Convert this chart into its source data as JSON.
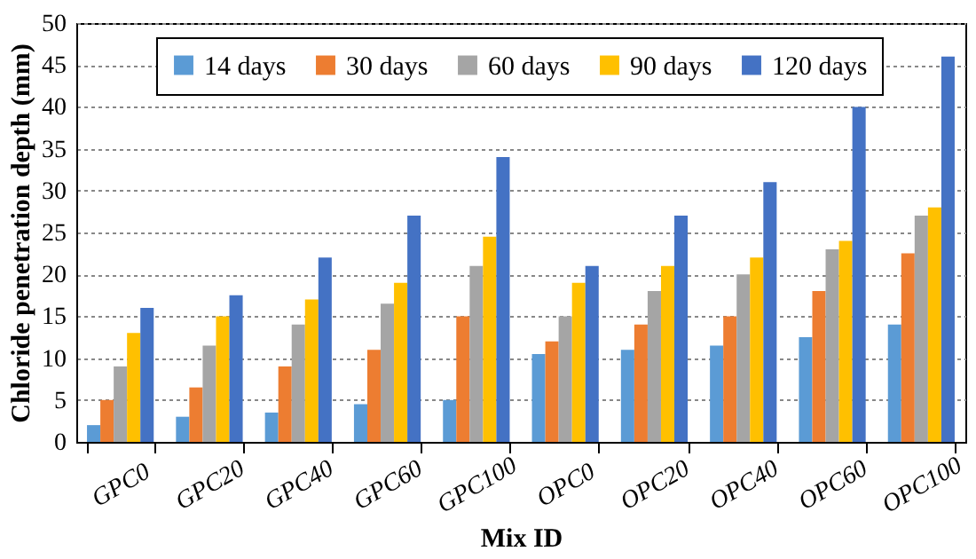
{
  "chart_data": {
    "type": "bar",
    "xlabel": "Mix ID",
    "ylabel": "Chloride penetration depth (mm)",
    "categories": [
      "GPC0",
      "GPC20",
      "GPC40",
      "GPC60",
      "GPC100",
      "OPC0",
      "OPC20",
      "OPC40",
      "OPC60",
      "OPC100"
    ],
    "series": [
      {
        "name": "14 days",
        "color": "#5b9bd5",
        "values": [
          2,
          3,
          3.5,
          4.5,
          5,
          10.5,
          11,
          11.5,
          12.5,
          14
        ]
      },
      {
        "name": "30 days",
        "color": "#ed7d31",
        "values": [
          5,
          6.5,
          9,
          11,
          15,
          12,
          14,
          15,
          18,
          22.5
        ]
      },
      {
        "name": "60 days",
        "color": "#a5a5a5",
        "values": [
          9,
          11.5,
          14,
          16.5,
          21,
          15,
          18,
          20,
          23,
          27
        ]
      },
      {
        "name": "90 days",
        "color": "#ffc000",
        "values": [
          13,
          15,
          17,
          19,
          24.5,
          19,
          21,
          22,
          24,
          28
        ]
      },
      {
        "name": "120 days",
        "color": "#4472c4",
        "values": [
          16,
          17.5,
          22,
          27,
          34,
          21,
          27,
          31,
          40,
          46
        ]
      }
    ],
    "ylim": [
      0,
      50
    ],
    "yticks": [
      0,
      5,
      10,
      15,
      20,
      25,
      30,
      35,
      40,
      45,
      50
    ],
    "grid": "y",
    "legend": "top"
  }
}
